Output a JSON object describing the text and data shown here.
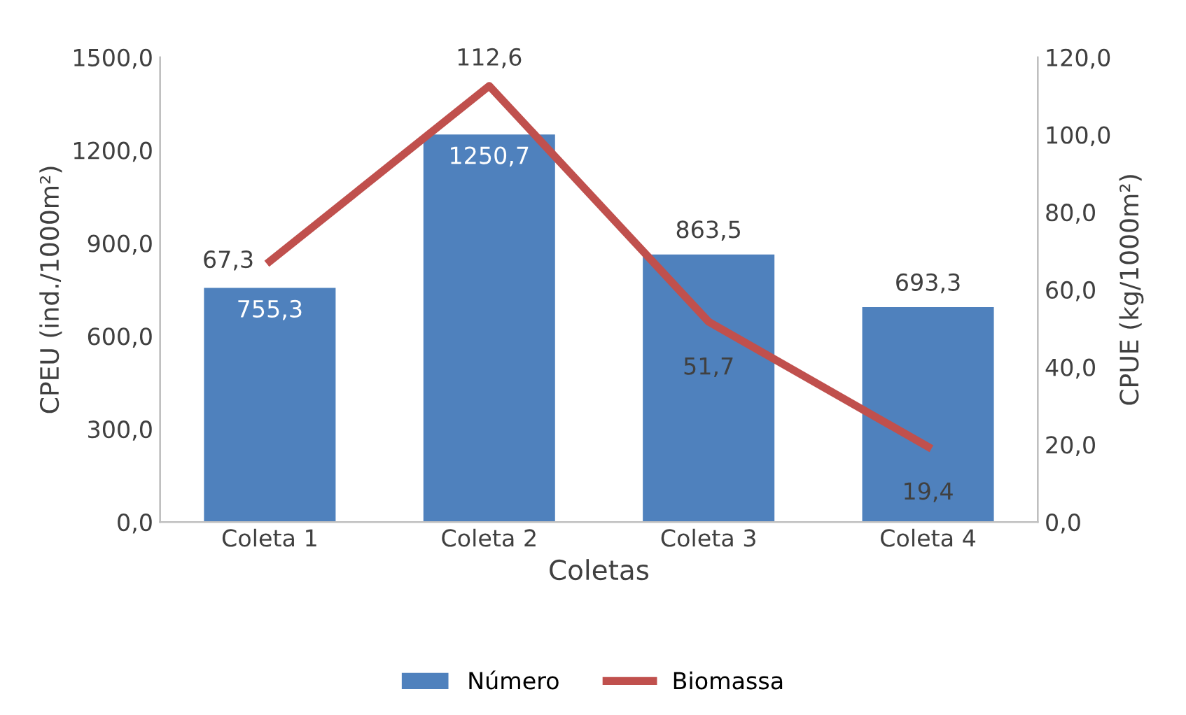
{
  "chart_data": {
    "type": "bar",
    "xlabel": "Coletas",
    "ylabel": "CPEU (ind./1000m²)",
    "y2label": "CPUE (kg/1000m²)",
    "categories": [
      "Coleta 1",
      "Coleta 2",
      "Coleta 3",
      "Coleta 4"
    ],
    "series": [
      {
        "name": "Número",
        "color": "#4f81bd",
        "values": [
          755.3,
          1250.7,
          863.5,
          693.3
        ],
        "value_labels": [
          "755,3",
          "1250,7",
          "863,5",
          "693,3"
        ]
      },
      {
        "name": "Biomassa",
        "type": "line",
        "axis": "y2",
        "color": "#c0504d",
        "values": [
          67.3,
          112.6,
          51.7,
          19.4
        ],
        "value_labels": [
          "67,3",
          "112,6",
          "51,7",
          "19,4"
        ]
      }
    ],
    "ylim": [
      0,
      1500
    ],
    "yticks": [
      {
        "value": 0,
        "label": "0,0"
      },
      {
        "value": 300,
        "label": "300,0"
      },
      {
        "value": 600,
        "label": "600,0"
      },
      {
        "value": 900,
        "label": "900,0"
      },
      {
        "value": 1200,
        "label": "1200,0"
      },
      {
        "value": 1500,
        "label": "1500,0"
      }
    ],
    "y2lim": [
      0,
      120
    ],
    "y2ticks": [
      {
        "value": 0,
        "label": "0,0"
      },
      {
        "value": 20,
        "label": "20,0"
      },
      {
        "value": 40,
        "label": "40,0"
      },
      {
        "value": 60,
        "label": "60,0"
      },
      {
        "value": 80,
        "label": "80,0"
      },
      {
        "value": 100,
        "label": "100,0"
      },
      {
        "value": 120,
        "label": "120,0"
      }
    ],
    "grid": false,
    "legend": "bottom",
    "marker": "none",
    "line_style": "solid"
  }
}
